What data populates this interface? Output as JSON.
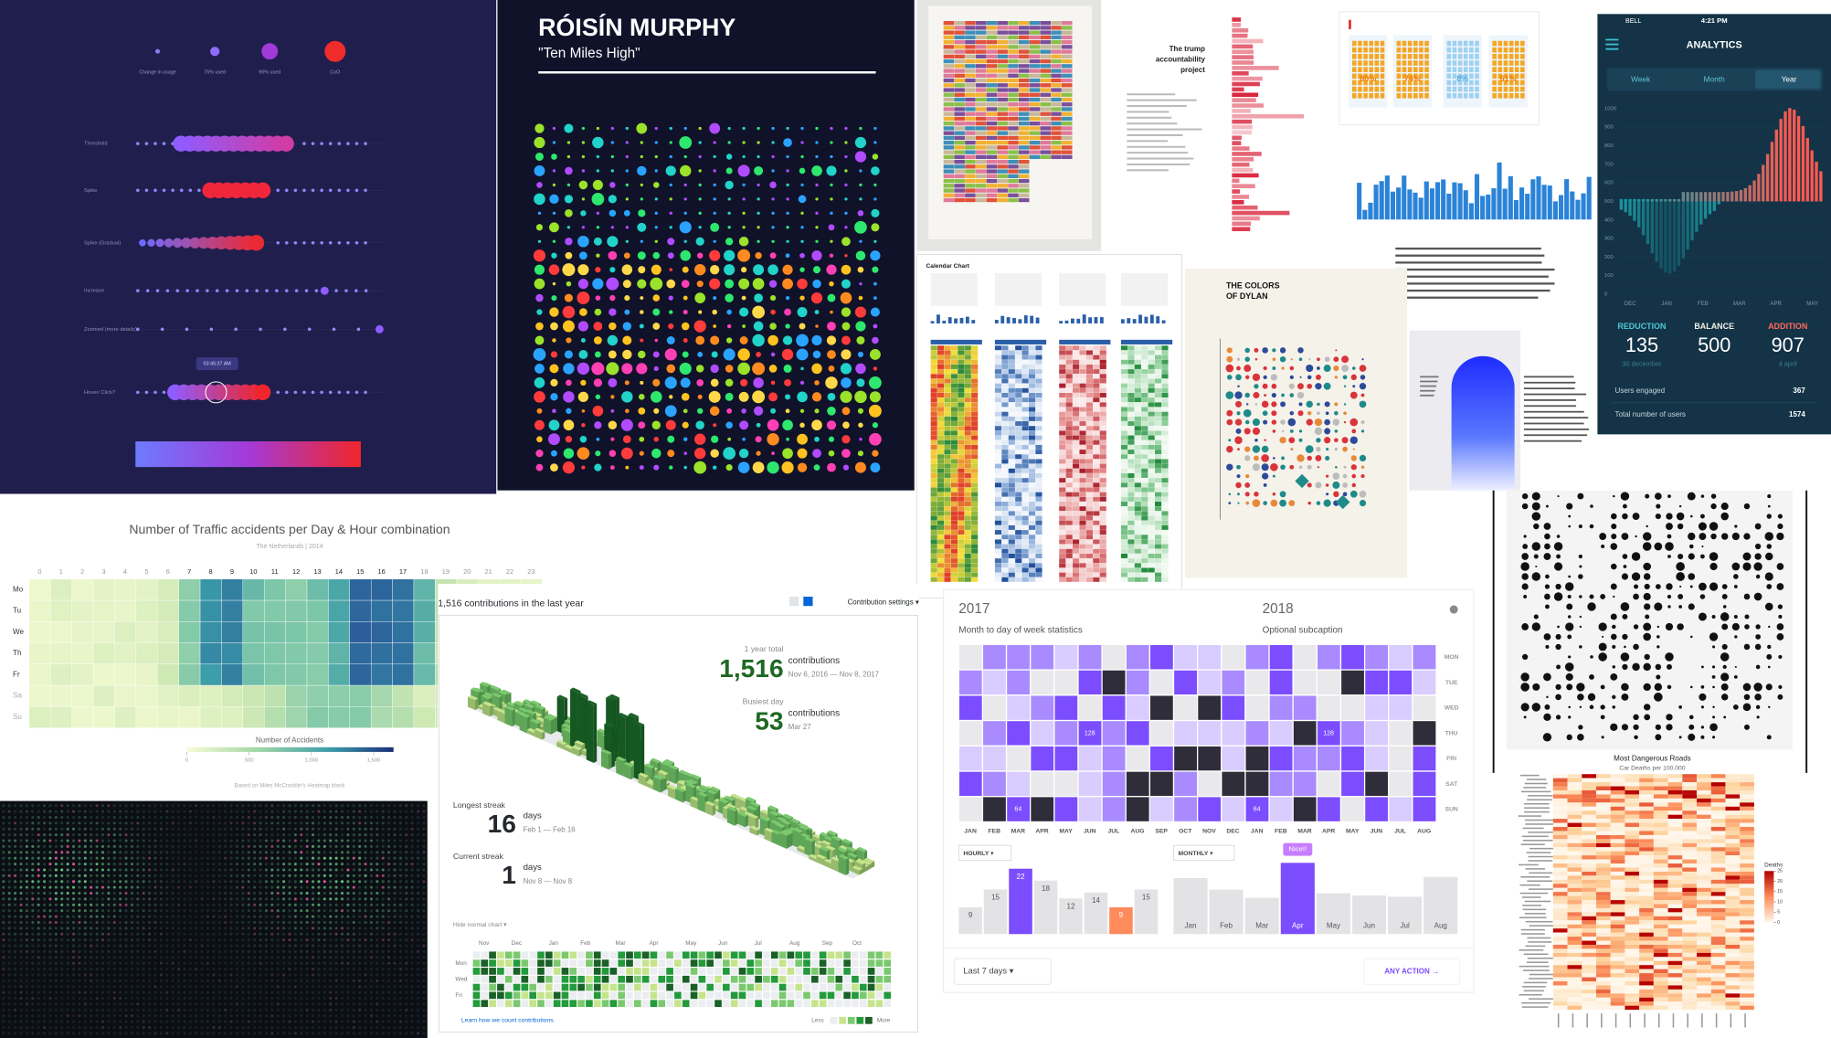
{
  "usage": {
    "legend": [
      "Change in usage",
      "75% used",
      "90% used",
      "CoO"
    ],
    "rows": [
      "Threshold",
      "Spike",
      "Spike (Gradual)",
      "Increase",
      "Zoomed (more details)",
      "Hover/ Click?"
    ],
    "tooltip": "03:45:37 AM"
  },
  "album": {
    "title": "RÓISÍN MURPHY",
    "subtitle": "\"Ten Miles High\""
  },
  "trump": {
    "title": [
      "The trump",
      "accountability",
      "project"
    ]
  },
  "share": {
    "values": [
      "80%",
      "74%",
      "8%",
      "61%"
    ]
  },
  "calendar_chart": {
    "title": "Calendar Chart"
  },
  "dylan": {
    "title": [
      "THE COLORS",
      "OF DYLAN"
    ]
  },
  "analytics": {
    "carrier": "BELL",
    "time": "4:21 PM",
    "title": "ANALYTICS",
    "tabs": [
      "Week",
      "Month",
      "Year"
    ],
    "ylim": [
      0,
      1000
    ],
    "yticks": [
      0,
      100,
      200,
      300,
      400,
      500,
      600,
      700,
      800,
      900,
      1000
    ],
    "months": [
      "DEC",
      "JAN",
      "FEB",
      "MAR",
      "APR",
      "MAY"
    ],
    "stats": [
      {
        "label": "REDUCTION",
        "value": "135",
        "note": "30 december"
      },
      {
        "label": "BALANCE",
        "value": "500"
      },
      {
        "label": "ADDITION",
        "value": "907",
        "note": "4 april"
      }
    ],
    "rows": [
      {
        "label": "Users engaged",
        "value": "367"
      },
      {
        "label": "Total number of users",
        "value": "1574"
      }
    ]
  },
  "traffic": {
    "title": "Number of Traffic accidents per Day & Hour combination",
    "subtitle": "The Netherlands | 2014",
    "hours": [
      0,
      1,
      2,
      3,
      4,
      5,
      6,
      7,
      8,
      9,
      10,
      11,
      12,
      13,
      14,
      15,
      16,
      17,
      18,
      19,
      20,
      21,
      22,
      23
    ],
    "days": [
      "Mo",
      "Tu",
      "We",
      "Th",
      "Fr",
      "Sa",
      "Su"
    ],
    "legend_title": "Number of Accidents",
    "legend_ticks": [
      0,
      500,
      {
        "value": 1000,
        "label": "1,000"
      },
      {
        "value": 1500,
        "label": "1,500"
      }
    ],
    "credit": "Based on Miles McCrocklin's Heatmap block"
  },
  "github": {
    "header": "1,516 contributions in the last year",
    "settings": "Contribution settings ▾",
    "total_label": "1 year total",
    "total": "1,516",
    "total_unit": "contributions",
    "total_range": "Nov 6, 2016 — Nov 8, 2017",
    "busiest_label": "Busiest day",
    "busiest": "53",
    "busiest_unit": "contributions",
    "busiest_date": "Mar 27",
    "longest_label": "Longest streak",
    "longest": "16",
    "longest_unit": "days",
    "longest_range": "Feb 1 — Feb 16",
    "current_label": "Current streak",
    "current": "1",
    "current_unit": "days",
    "current_range": "Nov 8 — Nov 8",
    "toggle": "Hide normal chart ▾",
    "months": [
      "Nov",
      "Dec",
      "Jan",
      "Feb",
      "Mar",
      "Apr",
      "May",
      "Jun",
      "Jul",
      "Aug",
      "Sep",
      "Oct"
    ],
    "weekdays": [
      "Mon",
      "Wed",
      "Fri"
    ],
    "footer": "Learn how we count contributions.",
    "less": "Less",
    "more": "More"
  },
  "calendar": {
    "years": [
      "2017",
      "2018"
    ],
    "subtitle": "Month to day of week statistics",
    "subcaption": "Optional subcaption",
    "weekdays": [
      "MON",
      "TUE",
      "WED",
      "THU",
      "FRI",
      "SAT",
      "SUN"
    ],
    "months": [
      "JAN",
      "FEB",
      "MAR",
      "APR",
      "MAY",
      "JUN",
      "JUL",
      "AUG",
      "SEP",
      "OCT",
      "NOV",
      "DEC",
      "JAN",
      "FEB",
      "MAR",
      "APR",
      "MAY",
      "JUN",
      "JUL",
      "AUG"
    ],
    "cell_labels": [
      "128",
      "128",
      "64",
      "64"
    ],
    "hourly": {
      "menu": "HOURLY ▾",
      "values": [
        9,
        15,
        22,
        18,
        12,
        14,
        9,
        15
      ],
      "colors": [
        "#e3e3e6",
        "#e3e3e6",
        "#7c4dff",
        "#e3e3e6",
        "#e3e3e6",
        "#e3e3e6",
        "#ff8a5c",
        "#e3e3e6"
      ]
    },
    "monthly": {
      "menu": "MONTHLY ▾",
      "categories": [
        "Jan",
        "Feb",
        "Mar",
        "Apr",
        "May",
        "Jun",
        "Jul",
        "Aug"
      ],
      "values": [
        48,
        38,
        31,
        61,
        35,
        33,
        32,
        49
      ],
      "colors": [
        "#e3e3e6",
        "#e3e3e6",
        "#e3e3e6",
        "#7c4dff",
        "#e3e3e6",
        "#e3e3e6",
        "#e3e3e6",
        "#e3e3e6"
      ],
      "annotation": "Nice!!"
    },
    "range": "Last 7 days ▾",
    "action": "ANY ACTION →"
  },
  "roads": {
    "title": "Most Dangerous Roads",
    "subtitle": "Car Deaths per 100,000",
    "legend_title": "Deaths",
    "legend_ticks": [
      25,
      20,
      15,
      10,
      5,
      0
    ]
  }
}
